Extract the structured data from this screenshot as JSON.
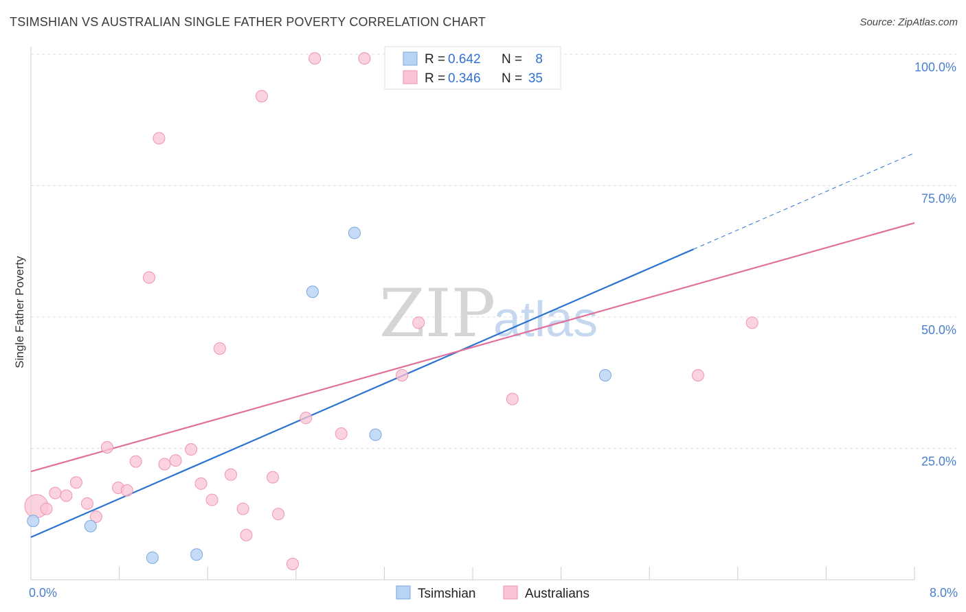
{
  "title": "TSIMSHIAN VS AUSTRALIAN SINGLE FATHER POVERTY CORRELATION CHART",
  "source": "Source: ZipAtlas.com",
  "watermark": {
    "zip": "ZIP",
    "atlas": "atlas"
  },
  "colors": {
    "tsimshian_fill": "#b8d3f4",
    "tsimshian_stroke": "#7aa7e0",
    "tsimshian_line": "#2a72d0",
    "australians_fill": "#f9c4d3",
    "australians_stroke": "#ef93b0",
    "australians_line": "#e0709a",
    "grid": "#dddddd",
    "tick_text": "#4a7fcf"
  },
  "chart_data": {
    "type": "scatter",
    "title": "TSIMSHIAN VS AUSTRALIAN SINGLE FATHER POVERTY CORRELATION CHART",
    "xlabel": "",
    "ylabel": "Single Father Poverty",
    "xlim": [
      0,
      8
    ],
    "ylim": [
      0,
      100
    ],
    "x_ticks": [
      "0.0%",
      "8.0%"
    ],
    "y_ticks": [
      {
        "value": 25,
        "label": "25.0%"
      },
      {
        "value": 50,
        "label": "50.0%"
      },
      {
        "value": 75,
        "label": "75.0%"
      },
      {
        "value": 100,
        "label": "100.0%"
      }
    ],
    "grid": true,
    "legend_placement": "top-center",
    "legend": [
      {
        "name": "Tsimshian",
        "r_label": "R =",
        "r_value": "0.642",
        "n_label": "N =",
        "n_value": "8"
      },
      {
        "name": "Australians",
        "r_label": "R =",
        "r_value": "0.346",
        "n_label": "N =",
        "n_value": "35"
      }
    ],
    "series": [
      {
        "name": "Tsimshian",
        "points": [
          {
            "x": 0.02,
            "y": 11.2
          },
          {
            "x": 0.54,
            "y": 10.2
          },
          {
            "x": 1.1,
            "y": 4.2
          },
          {
            "x": 1.5,
            "y": 4.8
          },
          {
            "x": 2.55,
            "y": 54.8
          },
          {
            "x": 2.93,
            "y": 66.0
          },
          {
            "x": 3.12,
            "y": 27.6
          },
          {
            "x": 5.2,
            "y": 38.9
          }
        ],
        "trend": {
          "x0": 0.0,
          "y0": 8.1,
          "x1": 6.0,
          "y1": 62.9,
          "x_dash_end": 8.0,
          "y_dash_end": 81.2
        }
      },
      {
        "name": "Australians",
        "points": [
          {
            "x": 0.05,
            "y": 14.0,
            "large": true
          },
          {
            "x": 0.14,
            "y": 13.5
          },
          {
            "x": 0.22,
            "y": 16.5
          },
          {
            "x": 0.32,
            "y": 16.0
          },
          {
            "x": 0.41,
            "y": 18.5
          },
          {
            "x": 0.51,
            "y": 14.5
          },
          {
            "x": 0.59,
            "y": 12.0
          },
          {
            "x": 0.69,
            "y": 25.2
          },
          {
            "x": 0.79,
            "y": 17.5
          },
          {
            "x": 0.87,
            "y": 17.0
          },
          {
            "x": 0.95,
            "y": 22.5
          },
          {
            "x": 1.07,
            "y": 57.5
          },
          {
            "x": 1.16,
            "y": 84.0
          },
          {
            "x": 1.21,
            "y": 22.0
          },
          {
            "x": 1.31,
            "y": 22.7
          },
          {
            "x": 1.45,
            "y": 24.8
          },
          {
            "x": 1.54,
            "y": 18.3
          },
          {
            "x": 1.64,
            "y": 15.2
          },
          {
            "x": 1.71,
            "y": 44.0
          },
          {
            "x": 1.81,
            "y": 20.0
          },
          {
            "x": 1.92,
            "y": 13.5
          },
          {
            "x": 1.95,
            "y": 8.5
          },
          {
            "x": 2.09,
            "y": 92.0
          },
          {
            "x": 2.19,
            "y": 19.5
          },
          {
            "x": 2.24,
            "y": 12.5
          },
          {
            "x": 2.37,
            "y": 3.0
          },
          {
            "x": 2.49,
            "y": 30.8
          },
          {
            "x": 2.57,
            "y": 99.2
          },
          {
            "x": 2.81,
            "y": 27.8
          },
          {
            "x": 3.02,
            "y": 99.2
          },
          {
            "x": 3.36,
            "y": 38.9
          },
          {
            "x": 3.51,
            "y": 48.9
          },
          {
            "x": 4.36,
            "y": 34.4
          },
          {
            "x": 6.04,
            "y": 38.9
          },
          {
            "x": 6.53,
            "y": 48.9
          }
        ],
        "trend": {
          "x0": 0.0,
          "y0": 20.6,
          "x1": 8.0,
          "y1": 67.9
        }
      }
    ]
  }
}
